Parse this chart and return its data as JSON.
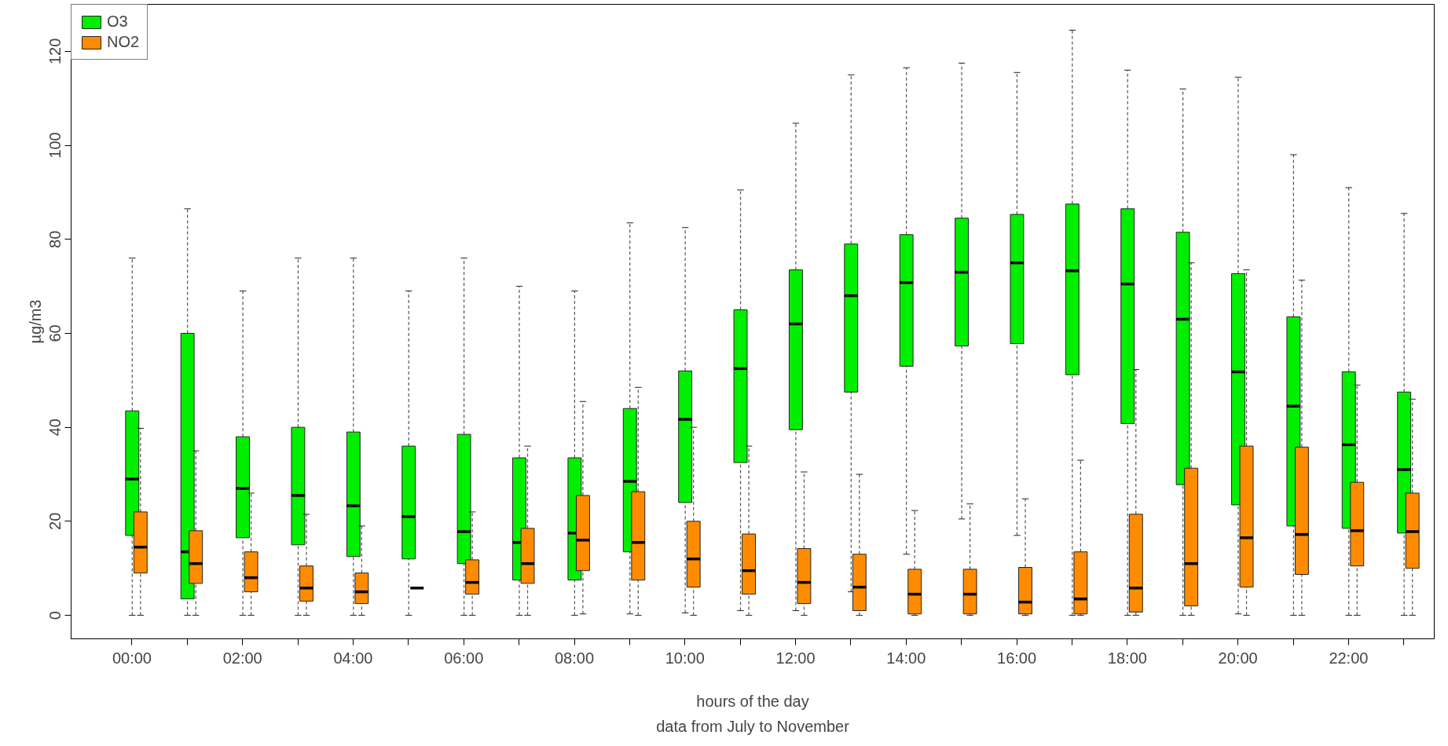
{
  "chart_data": {
    "type": "box",
    "xlabel": "hours of the day",
    "ylabel": "µg/m3",
    "annotations": [
      "data from July to November"
    ],
    "categories": [
      "00:00",
      null,
      "02:00",
      null,
      "04:00",
      null,
      "06:00",
      null,
      "08:00",
      null,
      "10:00",
      null,
      "12:00",
      null,
      "14:00",
      null,
      "16:00",
      null,
      "18:00",
      null,
      "20:00",
      null,
      "22:00",
      null
    ],
    "ylim": [
      -5,
      130
    ],
    "yticks": [
      0,
      20,
      40,
      60,
      80,
      100,
      120
    ],
    "grid": false,
    "legend": "top left",
    "series": [
      {
        "name": "O3",
        "color": "#00ee00",
        "boxes": [
          {
            "low": 0,
            "q1": 17,
            "median": 29,
            "q3": 43.5,
            "high": 76
          },
          {
            "low": 0,
            "q1": 3.5,
            "median": 13.5,
            "q3": 60,
            "high": 86.5
          },
          {
            "low": 0,
            "q1": 16.5,
            "median": 27,
            "q3": 38,
            "high": 69
          },
          {
            "low": 0,
            "q1": 15,
            "median": 25.5,
            "q3": 40,
            "high": 76
          },
          {
            "low": 0,
            "q1": 12.5,
            "median": 23.3,
            "q3": 39,
            "high": 76
          },
          {
            "low": 0,
            "q1": 12,
            "median": 21,
            "q3": 36,
            "high": 69
          },
          {
            "low": 0,
            "q1": 11,
            "median": 17.8,
            "q3": 38.5,
            "high": 76
          },
          {
            "low": 0,
            "q1": 7.5,
            "median": 15.5,
            "q3": 33.5,
            "high": 70
          },
          {
            "low": 0,
            "q1": 7.5,
            "median": 17.5,
            "q3": 33.5,
            "high": 69
          },
          {
            "low": 0.3,
            "q1": 13.5,
            "median": 28.5,
            "q3": 44,
            "high": 83.5
          },
          {
            "low": 0.5,
            "q1": 24,
            "median": 41.7,
            "q3": 52,
            "high": 82.5
          },
          {
            "low": 1,
            "q1": 32.5,
            "median": 52.5,
            "q3": 65,
            "high": 90.5
          },
          {
            "low": 1,
            "q1": 39.5,
            "median": 62,
            "q3": 73.5,
            "high": 104.7
          },
          {
            "low": 5,
            "q1": 47.5,
            "median": 68,
            "q3": 79,
            "high": 115
          },
          {
            "low": 13,
            "q1": 53,
            "median": 70.8,
            "q3": 81,
            "high": 116.5
          },
          {
            "low": 20.5,
            "q1": 57.3,
            "median": 73,
            "q3": 84.5,
            "high": 117.5
          },
          {
            "low": 17,
            "q1": 57.8,
            "median": 75,
            "q3": 85.3,
            "high": 115.5
          },
          {
            "low": 0,
            "q1": 51.2,
            "median": 73.3,
            "q3": 87.5,
            "high": 124.5
          },
          {
            "low": 0,
            "q1": 40.8,
            "median": 70.5,
            "q3": 86.5,
            "high": 116
          },
          {
            "low": 0,
            "q1": 27.8,
            "median": 63,
            "q3": 81.5,
            "high": 112
          },
          {
            "low": 0.3,
            "q1": 23.5,
            "median": 51.8,
            "q3": 72.7,
            "high": 114.5
          },
          {
            "low": 0,
            "q1": 19,
            "median": 44.5,
            "q3": 63.5,
            "high": 98
          },
          {
            "low": 0,
            "q1": 18.5,
            "median": 36.3,
            "q3": 51.8,
            "high": 91
          },
          {
            "low": 0,
            "q1": 17.5,
            "median": 31,
            "q3": 47.5,
            "high": 85.5
          }
        ]
      },
      {
        "name": "NO2",
        "color": "#ff8c00",
        "boxes": [
          {
            "low": 0,
            "q1": 9,
            "median": 14.5,
            "q3": 22,
            "high": 39.8
          },
          {
            "low": 0,
            "q1": 6.8,
            "median": 11,
            "q3": 18,
            "high": 35
          },
          {
            "low": 0,
            "q1": 5,
            "median": 8,
            "q3": 13.5,
            "high": 26
          },
          {
            "low": 0,
            "q1": 3,
            "median": 5.8,
            "q3": 10.5,
            "high": 21.5
          },
          {
            "low": 0,
            "q1": 2.5,
            "median": 5,
            "q3": 9,
            "high": 19
          },
          {
            "low": 5.8,
            "q1": 5.8,
            "median": 5.8,
            "q3": 5.8,
            "high": 5.8
          },
          {
            "low": 0,
            "q1": 4.5,
            "median": 7,
            "q3": 11.8,
            "high": 22
          },
          {
            "low": 0,
            "q1": 6.8,
            "median": 11,
            "q3": 18.5,
            "high": 36
          },
          {
            "low": 0.3,
            "q1": 9.5,
            "median": 16,
            "q3": 25.5,
            "high": 45.5
          },
          {
            "low": 0,
            "q1": 7.5,
            "median": 15.5,
            "q3": 26.3,
            "high": 48.5
          },
          {
            "low": 0,
            "q1": 6,
            "median": 12,
            "q3": 20,
            "high": 40
          },
          {
            "low": 0,
            "q1": 4.5,
            "median": 9.5,
            "q3": 17.3,
            "high": 36
          },
          {
            "low": 0,
            "q1": 2.5,
            "median": 7,
            "q3": 14.2,
            "high": 30.5
          },
          {
            "low": 0,
            "q1": 1,
            "median": 6,
            "q3": 13,
            "high": 30
          },
          {
            "low": 0,
            "q1": 0.3,
            "median": 4.5,
            "q3": 9.8,
            "high": 22.3
          },
          {
            "low": 0,
            "q1": 0.3,
            "median": 4.5,
            "q3": 9.8,
            "high": 23.7
          },
          {
            "low": 0,
            "q1": 0.3,
            "median": 2.8,
            "q3": 10.2,
            "high": 24.8
          },
          {
            "low": 0,
            "q1": 0.3,
            "median": 3.5,
            "q3": 13.5,
            "high": 33
          },
          {
            "low": 0,
            "q1": 0.7,
            "median": 5.8,
            "q3": 21.5,
            "high": 52.3
          },
          {
            "low": 0,
            "q1": 2,
            "median": 11,
            "q3": 31.3,
            "high": 75
          },
          {
            "low": 0,
            "q1": 6,
            "median": 16.5,
            "q3": 36,
            "high": 73.5
          },
          {
            "low": 0,
            "q1": 8.7,
            "median": 17.2,
            "q3": 35.8,
            "high": 71.3
          },
          {
            "low": 0,
            "q1": 10.5,
            "median": 18,
            "q3": 28.3,
            "high": 49
          },
          {
            "low": 0,
            "q1": 10,
            "median": 17.8,
            "q3": 26,
            "high": 46
          }
        ]
      }
    ]
  }
}
